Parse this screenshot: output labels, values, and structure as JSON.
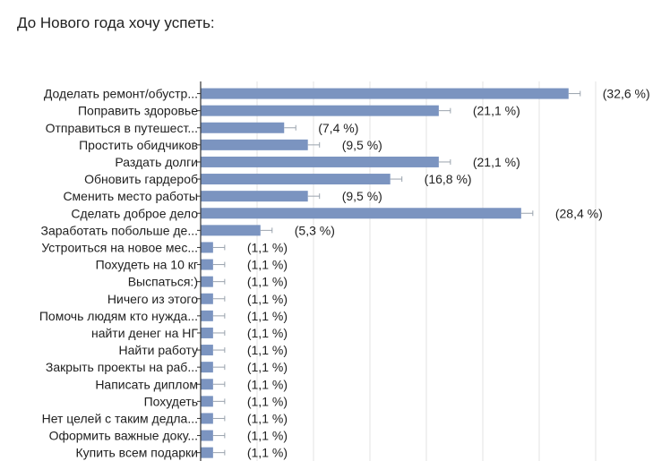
{
  "title": "До Нового года хочу успеть:",
  "colors": {
    "bar": "#7b94c0",
    "axis": "#333333",
    "grid": "#e3e3e3",
    "text": "#212121"
  },
  "chart_data": {
    "type": "bar",
    "orientation": "horizontal",
    "title": "До Нового года хочу успеть:",
    "xlim": [
      0,
      35
    ],
    "grid": true,
    "categories": [
      "Доделать ремонт/обустр...",
      "Поправить здоровье",
      "Отправиться в путешест...",
      "Простить обидчиков",
      "Раздать долги",
      "Обновить гардероб",
      "Сменить место работы",
      "Сделать доброе дело",
      "Заработать побольше де...",
      "Устроиться на новое мес...",
      "Похудеть на 10 кг",
      "Выспаться:)",
      "Ничего из этого",
      "Помочь людям кто нужда...",
      "найти денег на НГ",
      "Найти работу",
      "Закрыть проекты на раб...",
      "Написать диплом",
      "Похудеть",
      "Нет целей с таким дедла...",
      "Оформить важные доку...",
      "Купить всем подарки"
    ],
    "values": [
      32.6,
      21.1,
      7.4,
      9.5,
      21.1,
      16.8,
      9.5,
      28.4,
      5.3,
      1.1,
      1.1,
      1.1,
      1.1,
      1.1,
      1.1,
      1.1,
      1.1,
      1.1,
      1.1,
      1.1,
      1.1,
      1.1
    ],
    "value_labels": [
      "(32,6 %)",
      "(21,1 %)",
      "(7,4 %)",
      "(9,5 %)",
      "(21,1 %)",
      "(16,8 %)",
      "(9,5 %)",
      "(28,4 %)",
      "(5,3 %)",
      "(1,1 %)",
      "(1,1 %)",
      "(1,1 %)",
      "(1,1 %)",
      "(1,1 %)",
      "(1,1 %)",
      "(1,1 %)",
      "(1,1 %)",
      "(1,1 %)",
      "(1,1 %)",
      "(1,1 %)",
      "(1,1 %)",
      "(1,1 %)"
    ]
  }
}
